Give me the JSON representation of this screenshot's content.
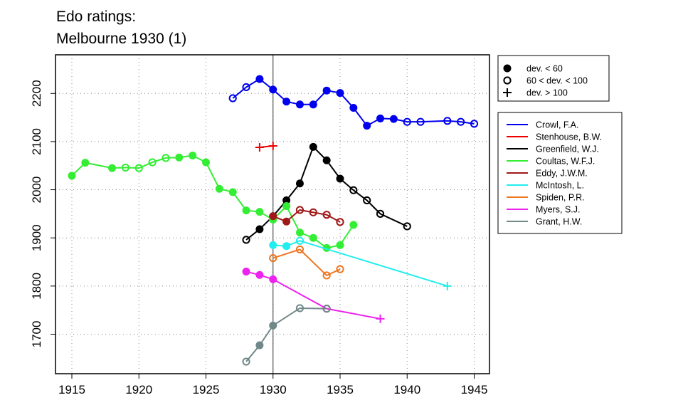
{
  "chart_data": {
    "type": "line",
    "title": "Edo ratings:",
    "subtitle": "Melbourne 1930 (1)",
    "xlabel": "",
    "ylabel": "",
    "xlim": [
      1914,
      1946
    ],
    "ylim": [
      1620,
      2265
    ],
    "x_ticks": [
      "1915",
      "1920",
      "1925",
      "1930",
      "1935",
      "1940",
      "1945"
    ],
    "y_ticks": [
      "1700",
      "1800",
      "1900",
      "2000",
      "2100",
      "2200"
    ],
    "grid": true,
    "highlight_year": 1930,
    "marker_legend": [
      {
        "symbol": "filled-circle",
        "label": "dev. < 60"
      },
      {
        "symbol": "open-circle",
        "label": "60 < dev. < 100"
      },
      {
        "symbol": "plus",
        "label": "dev. > 100"
      }
    ],
    "series": [
      {
        "name": "Crowl, F.A.",
        "color": "#0000ee",
        "points": [
          [
            1927,
            2190,
            "o"
          ],
          [
            1928,
            2213,
            "o"
          ],
          [
            1929,
            2230,
            "f"
          ],
          [
            1930,
            2208,
            "f"
          ],
          [
            1931,
            2183,
            "f"
          ],
          [
            1932,
            2177,
            "f"
          ],
          [
            1933,
            2177,
            "f"
          ],
          [
            1934,
            2206,
            "f"
          ],
          [
            1935,
            2201,
            "f"
          ],
          [
            1936,
            2170,
            "f"
          ],
          [
            1937,
            2133,
            "f"
          ],
          [
            1938,
            2148,
            "f"
          ],
          [
            1939,
            2147,
            "f"
          ],
          [
            1940,
            2141,
            "o"
          ],
          [
            1941,
            2141,
            "o"
          ],
          [
            1943,
            2143,
            "o"
          ],
          [
            1944,
            2141,
            "o"
          ],
          [
            1945,
            2137,
            "o"
          ]
        ]
      },
      {
        "name": "Stenhouse, B.W.",
        "color": "#ee0000",
        "points": [
          [
            1929,
            2088,
            "p"
          ],
          [
            1930,
            2091,
            "p"
          ]
        ]
      },
      {
        "name": "Greenfield, W.J.",
        "color": "#000000",
        "points": [
          [
            1928,
            1896,
            "o"
          ],
          [
            1929,
            1918,
            "f"
          ],
          [
            1930,
            1945,
            "f"
          ],
          [
            1931,
            1978,
            "f"
          ],
          [
            1932,
            2013,
            "f"
          ],
          [
            1933,
            2089,
            "f"
          ],
          [
            1934,
            2061,
            "f"
          ],
          [
            1935,
            2023,
            "f"
          ],
          [
            1936,
            1999,
            "o"
          ],
          [
            1937,
            1978,
            "o"
          ],
          [
            1938,
            1950,
            "o"
          ],
          [
            1940,
            1924,
            "o"
          ]
        ]
      },
      {
        "name": "Coultas, W.F.J.",
        "color": "#33ee33",
        "points": [
          [
            1915,
            2029,
            "f"
          ],
          [
            1916,
            2056,
            "f"
          ],
          [
            1918,
            2045,
            "f"
          ],
          [
            1919,
            2046,
            "o"
          ],
          [
            1920,
            2045,
            "o"
          ],
          [
            1921,
            2057,
            "o"
          ],
          [
            1922,
            2066,
            "o"
          ],
          [
            1923,
            2067,
            "f"
          ],
          [
            1924,
            2071,
            "f"
          ],
          [
            1925,
            2057,
            "f"
          ],
          [
            1926,
            2002,
            "f"
          ],
          [
            1927,
            1995,
            "f"
          ],
          [
            1928,
            1957,
            "f"
          ],
          [
            1929,
            1954,
            "f"
          ],
          [
            1930,
            1938,
            "f"
          ],
          [
            1931,
            1966,
            "f"
          ],
          [
            1932,
            1911,
            "f"
          ],
          [
            1933,
            1900,
            "f"
          ],
          [
            1934,
            1879,
            "f"
          ],
          [
            1935,
            1885,
            "f"
          ],
          [
            1936,
            1927,
            "f"
          ]
        ]
      },
      {
        "name": "Eddy, J.W.M.",
        "color": "#a01818",
        "points": [
          [
            1930,
            1945,
            "f"
          ],
          [
            1931,
            1934,
            "f"
          ],
          [
            1932,
            1958,
            "o"
          ],
          [
            1933,
            1953,
            "o"
          ],
          [
            1934,
            1948,
            "o"
          ],
          [
            1935,
            1933,
            "o"
          ]
        ]
      },
      {
        "name": "McIntosh, L.",
        "color": "#22eeee",
        "points": [
          [
            1930,
            1885,
            "f"
          ],
          [
            1931,
            1883,
            "f"
          ],
          [
            1932,
            1894,
            "o"
          ],
          [
            1943,
            1800,
            "p"
          ]
        ]
      },
      {
        "name": "Spiden, P.R.",
        "color": "#ee7722",
        "points": [
          [
            1930,
            1858,
            "o"
          ],
          [
            1932,
            1876,
            "o"
          ],
          [
            1934,
            1822,
            "o"
          ],
          [
            1935,
            1835,
            "o"
          ]
        ]
      },
      {
        "name": "Myers, S.J.",
        "color": "#ee22ee",
        "points": [
          [
            1928,
            1830,
            "f"
          ],
          [
            1929,
            1823,
            "f"
          ],
          [
            1930,
            1814,
            "f"
          ],
          [
            1934,
            1753,
            "o"
          ],
          [
            1938,
            1732,
            "p"
          ]
        ]
      },
      {
        "name": "Grant, H.W.",
        "color": "#708888",
        "points": [
          [
            1928,
            1643,
            "o"
          ],
          [
            1929,
            1677,
            "f"
          ],
          [
            1930,
            1718,
            "f"
          ],
          [
            1932,
            1754,
            "o"
          ],
          [
            1934,
            1753,
            "o"
          ]
        ]
      }
    ]
  }
}
